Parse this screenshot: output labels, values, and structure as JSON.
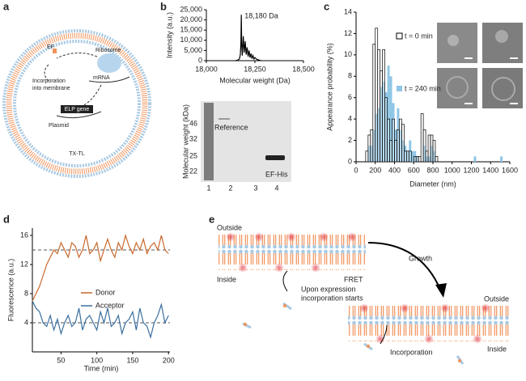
{
  "panel_a": {
    "label": "a",
    "ef": "EF",
    "ribosome": "Ribosome",
    "incorporation": [
      "Incorporation",
      "into membrane"
    ],
    "mrna": "mRNA",
    "gene": "ELP gene",
    "plasmid": "Plasmid",
    "system": "TX-TL"
  },
  "chart_data": [
    {
      "type": "area",
      "label": "b",
      "ylabel": "Intensity (a.u.)",
      "xlabel": "Molecular weight (Da)",
      "annotation": "18,180 Da",
      "color": "#000000",
      "xlim": [
        18000,
        18500
      ],
      "ylim": [
        0,
        25000
      ],
      "xticks": [
        {
          "value": 18000,
          "label": "18,000"
        },
        {
          "value": 18250,
          "label": "18,250"
        },
        {
          "value": 18500,
          "label": "18,500"
        }
      ],
      "yticks": [
        0,
        {
          "value": 5000,
          "label": "5,000"
        },
        {
          "value": 10000,
          "label": "10,000"
        },
        {
          "value": 15000,
          "label": "15,000"
        },
        {
          "value": 20000,
          "label": "20,000"
        },
        {
          "value": 25000,
          "label": "25,000"
        }
      ],
      "x": [
        18150,
        18160,
        18170,
        18175,
        18178,
        18180,
        18182,
        18185,
        18190,
        18195,
        18200,
        18205,
        18210,
        18215,
        18220,
        18225,
        18230,
        18235,
        18240,
        18245,
        18250,
        18260,
        18270,
        18280
      ],
      "values": [
        0,
        200,
        800,
        3000,
        9000,
        22500,
        8000,
        2500,
        12000,
        4000,
        9500,
        3000,
        6500,
        2000,
        5000,
        1500,
        3500,
        1000,
        2500,
        800,
        1500,
        600,
        300,
        0
      ]
    },
    {
      "type": "histogram",
      "label": "c",
      "ylabel": "Appearance probability (%)",
      "xlabel": "Diameter (nm)",
      "xlim": [
        0,
        1600
      ],
      "ylim": [
        0,
        14
      ],
      "xticks": [
        0,
        200,
        400,
        600,
        800,
        1000,
        1200,
        1400,
        1600
      ],
      "yticks": [
        0,
        2,
        4,
        6,
        8,
        10,
        12,
        14
      ],
      "bins": [
        100,
        125,
        150,
        175,
        200,
        225,
        250,
        275,
        300,
        325,
        350,
        375,
        400,
        425,
        450,
        475,
        500,
        525,
        550,
        575,
        600,
        625,
        650,
        675,
        700,
        725,
        750,
        775,
        800,
        825,
        850,
        875,
        900,
        925,
        950,
        975,
        1000,
        1025,
        1050,
        1075,
        1100,
        1125,
        1150,
        1175,
        1200,
        1225,
        1250,
        1275,
        1300,
        1325,
        1350,
        1375,
        1400,
        1425,
        1450,
        1475,
        1500,
        1525,
        1550
      ],
      "series": [
        {
          "name": "t = 240 min",
          "color": "#8fc6e6",
          "values": [
            0,
            1.5,
            1.5,
            3,
            4.5,
            5,
            7,
            7.5,
            6.5,
            9,
            8,
            5.5,
            3,
            5,
            3,
            2,
            1.5,
            1,
            2,
            1,
            1,
            0.5,
            0,
            0,
            1.5,
            0.5,
            0.5,
            1.5,
            1,
            0,
            0,
            0,
            0,
            0,
            0,
            0,
            0,
            0,
            0,
            0,
            0,
            0,
            0,
            0,
            0,
            0.5,
            0,
            0,
            0,
            0,
            0,
            0,
            0,
            0,
            0,
            0,
            0.5,
            0
          ]
        },
        {
          "name": "t = 0 min",
          "color": "#ffffff",
          "edgecolor": "#000000",
          "values": [
            1,
            2.5,
            3,
            11,
            12.5,
            10.5,
            8.5,
            10.5,
            6,
            4,
            2,
            4,
            2,
            3,
            4,
            3.5,
            1,
            1,
            1,
            0,
            0.5,
            0.5,
            0.5,
            4.5,
            3,
            1,
            2.5,
            2.5,
            2,
            0.5,
            0,
            0,
            0,
            0,
            0,
            0,
            0,
            0,
            0,
            0,
            0,
            0,
            0,
            0,
            0,
            0,
            0,
            0,
            0,
            0,
            0,
            0,
            0,
            0,
            0,
            0,
            0,
            0
          ]
        }
      ]
    },
    {
      "type": "line",
      "label": "d",
      "ylabel": "Fluorescence (a.u.)",
      "xlabel": "Time (min)",
      "xlim": [
        10,
        202
      ],
      "ylim": [
        0,
        17
      ],
      "xticks": [
        50,
        100,
        150,
        200
      ],
      "yticks": [
        4,
        8,
        12,
        16
      ],
      "reference_lines": [
        14,
        4
      ],
      "x": [
        10,
        15,
        20,
        25,
        30,
        35,
        40,
        45,
        50,
        55,
        60,
        65,
        70,
        75,
        80,
        85,
        90,
        95,
        100,
        105,
        110,
        115,
        120,
        125,
        130,
        135,
        140,
        145,
        150,
        155,
        160,
        165,
        170,
        175,
        180,
        185,
        190,
        195,
        200
      ],
      "series": [
        {
          "name": "Donor",
          "color": "#c8682b",
          "values": [
            7,
            8,
            9,
            10.5,
            12,
            13,
            14,
            13.5,
            15,
            14,
            13,
            15,
            14.5,
            13,
            14,
            16,
            13.5,
            14,
            15,
            12.5,
            14,
            15.5,
            14,
            13,
            15,
            14,
            16,
            14.5,
            13.5,
            15,
            14,
            15.5,
            13.5,
            14.5,
            15,
            14,
            16,
            14,
            13.5
          ]
        },
        {
          "name": "Acceptor",
          "color": "#3a6e9e",
          "values": [
            7,
            6,
            5.5,
            4,
            3.5,
            5,
            3,
            4.5,
            2.5,
            4,
            5,
            3.5,
            4,
            6,
            3,
            4.5,
            5,
            4,
            3,
            5.5,
            4,
            6,
            3.5,
            4,
            5,
            2.5,
            4,
            4.5,
            5.5,
            3,
            6,
            4,
            3.5,
            2,
            4,
            5,
            6.5,
            4,
            5
          ]
        }
      ]
    }
  ],
  "gel": {
    "ylabel": "Molecular weight (kDa)",
    "markers": [
      46,
      32,
      25,
      22
    ],
    "lanes": [
      "1",
      "2",
      "3",
      "4"
    ],
    "reference": "Reference",
    "product": "EF-His"
  },
  "panel_e": {
    "label": "e",
    "outside_1": "Outside",
    "inside_1": "Inside",
    "fret": "FRET",
    "growth": "Growth",
    "upon": [
      "Upon expression",
      "incorporation starts"
    ],
    "outside_2": "Outside",
    "inside_2": "Inside",
    "incorporation": "Incorporation"
  }
}
